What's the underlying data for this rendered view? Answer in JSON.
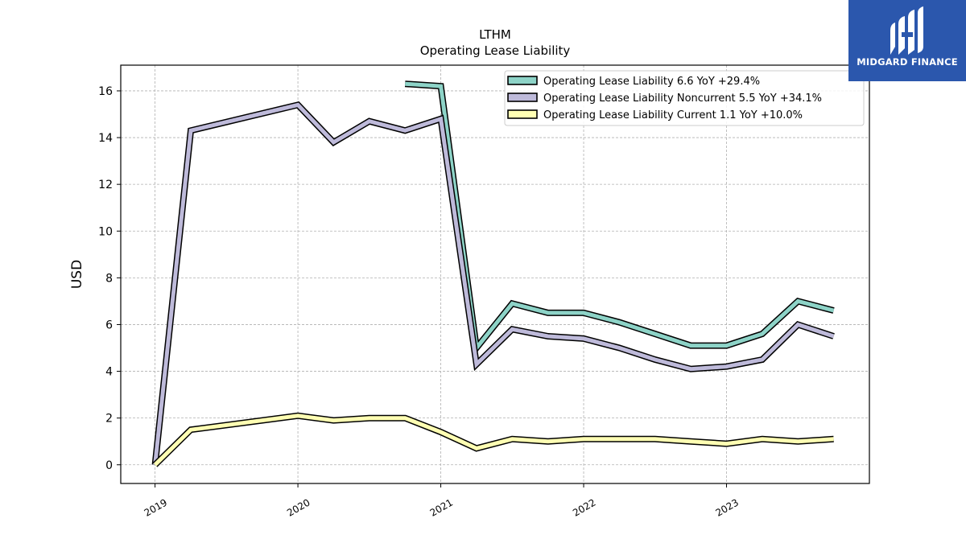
{
  "chart_data": {
    "type": "line",
    "title": "LTHM",
    "subtitle": "Operating Lease Liability",
    "ylabel": "USD",
    "xlabel": "",
    "ylim": [
      -0.8,
      17.1
    ],
    "xlim": [
      2018.76,
      2024.0
    ],
    "yticks": [
      0,
      2,
      4,
      6,
      8,
      10,
      12,
      14,
      16
    ],
    "xticks": [
      {
        "value": 2019,
        "label": "2019"
      },
      {
        "value": 2020,
        "label": "2020"
      },
      {
        "value": 2021,
        "label": "2021"
      },
      {
        "value": 2022,
        "label": "2022"
      },
      {
        "value": 2023,
        "label": "2023"
      }
    ],
    "grid": true,
    "legend_position": "top-right",
    "series": [
      {
        "name": "Operating Lease Liability  6.6 YoY +29.4%",
        "color": "#8dd3c7",
        "x": [
          2020.75,
          2021.0,
          2021.25,
          2021.5,
          2021.75,
          2022.0,
          2022.25,
          2022.5,
          2022.75,
          2023.0,
          2023.25,
          2023.5,
          2023.75
        ],
        "y": [
          16.3,
          16.2,
          5.0,
          6.9,
          6.5,
          6.5,
          6.1,
          5.6,
          5.1,
          5.1,
          5.6,
          7.0,
          6.6
        ]
      },
      {
        "name": "Operating Lease Liability Noncurrent  5.5 YoY +34.1%",
        "color": "#bebada",
        "x": [
          2019.0,
          2019.25,
          2020.0,
          2020.25,
          2020.5,
          2020.75,
          2021.0,
          2021.25,
          2021.5,
          2021.75,
          2022.0,
          2022.25,
          2022.5,
          2022.75,
          2023.0,
          2023.25,
          2023.5,
          2023.75
        ],
        "y": [
          0.0,
          14.3,
          15.4,
          13.8,
          14.7,
          14.3,
          14.8,
          4.3,
          5.8,
          5.5,
          5.4,
          5.0,
          4.5,
          4.1,
          4.2,
          4.5,
          6.0,
          5.5
        ]
      },
      {
        "name": "Operating Lease Liability Current  1.1 YoY +10.0%",
        "color": "#ffffb3",
        "x": [
          2019.0,
          2019.25,
          2020.0,
          2020.25,
          2020.5,
          2020.75,
          2021.0,
          2021.25,
          2021.5,
          2021.75,
          2022.0,
          2022.25,
          2022.5,
          2022.75,
          2023.0,
          2023.25,
          2023.5,
          2023.75
        ],
        "y": [
          0.0,
          1.5,
          2.1,
          1.9,
          2.0,
          2.0,
          1.4,
          0.7,
          1.1,
          1.0,
          1.1,
          1.1,
          1.1,
          1.0,
          0.9,
          1.1,
          1.0,
          1.1
        ]
      }
    ]
  },
  "logo": {
    "text": "MIDGARD FINANCE",
    "background": "#2b57ad"
  }
}
